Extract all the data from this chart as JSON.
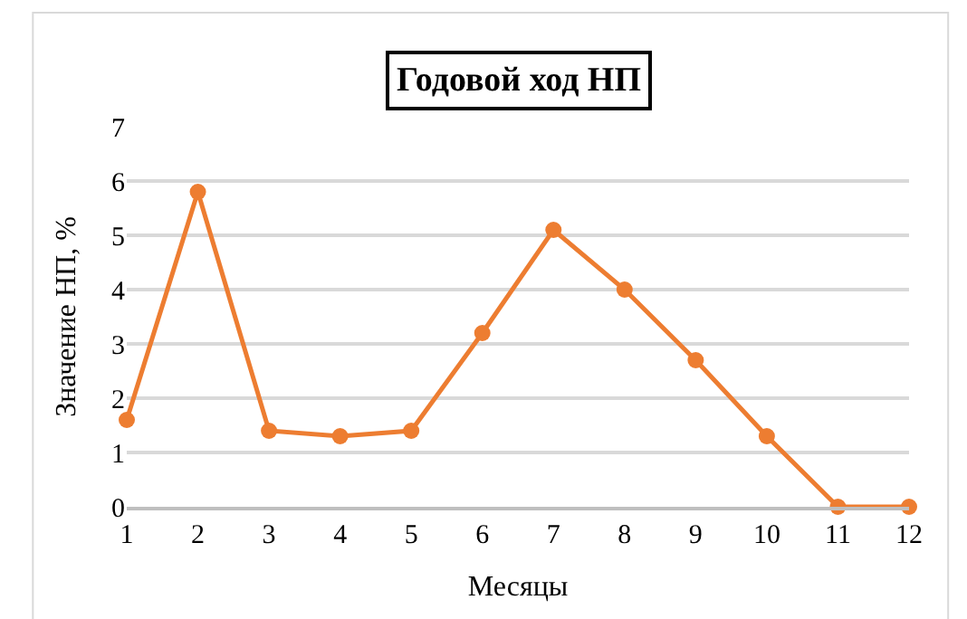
{
  "chart_data": {
    "type": "line",
    "title": "Годовой ход НП",
    "xlabel": "Месяцы",
    "ylabel": "Значение НП, %",
    "x": [
      1,
      2,
      3,
      4,
      5,
      6,
      7,
      8,
      9,
      10,
      11,
      12
    ],
    "series": [
      {
        "color": "#ed7d31",
        "values": [
          1.6,
          5.8,
          1.4,
          1.3,
          1.4,
          3.2,
          5.1,
          4.0,
          2.7,
          1.3,
          0,
          0
        ]
      }
    ],
    "xlim": [
      1,
      12
    ],
    "xticks": [
      1,
      2,
      3,
      4,
      5,
      6,
      7,
      8,
      9,
      10,
      11,
      12
    ],
    "ylim": [
      0,
      7
    ],
    "yticks": [
      0,
      1,
      2,
      3,
      4,
      5,
      6,
      7
    ],
    "grid": "y",
    "legend": false,
    "marker": "circle",
    "line_style": "solid"
  }
}
